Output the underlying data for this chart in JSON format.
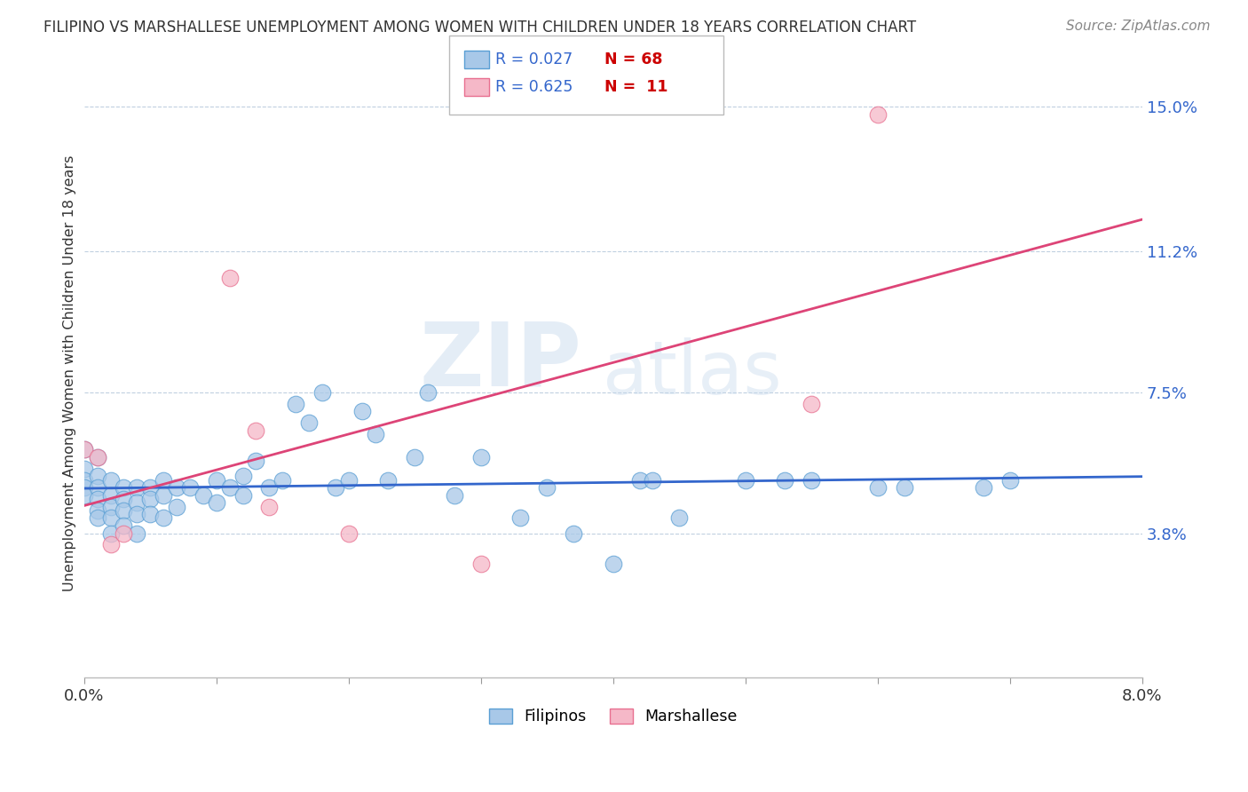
{
  "title": "FILIPINO VS MARSHALLESE UNEMPLOYMENT AMONG WOMEN WITH CHILDREN UNDER 18 YEARS CORRELATION CHART",
  "source": "Source: ZipAtlas.com",
  "ylabel": "Unemployment Among Women with Children Under 18 years",
  "xlim": [
    0.0,
    0.08
  ],
  "ylim": [
    0.0,
    0.16
  ],
  "ytick_positions": [
    0.038,
    0.075,
    0.112,
    0.15
  ],
  "ytick_labels": [
    "3.8%",
    "7.5%",
    "11.2%",
    "15.0%"
  ],
  "filipino_R": 0.027,
  "filipino_N": 68,
  "marshallese_R": 0.625,
  "marshallese_N": 11,
  "blue_scatter_color": "#a8c8e8",
  "blue_edge_color": "#5a9fd4",
  "pink_scatter_color": "#f5b8c8",
  "pink_edge_color": "#e87090",
  "blue_line_color": "#3366cc",
  "pink_line_color": "#dd4477",
  "legend_R_color": "#3366cc",
  "legend_N_color": "#cc0000",
  "filipino_x": [
    0.0,
    0.0,
    0.0,
    0.0,
    0.0,
    0.001,
    0.001,
    0.001,
    0.001,
    0.001,
    0.001,
    0.002,
    0.002,
    0.002,
    0.002,
    0.002,
    0.003,
    0.003,
    0.003,
    0.003,
    0.004,
    0.004,
    0.004,
    0.004,
    0.005,
    0.005,
    0.005,
    0.006,
    0.006,
    0.006,
    0.007,
    0.007,
    0.008,
    0.009,
    0.01,
    0.01,
    0.011,
    0.012,
    0.012,
    0.013,
    0.014,
    0.015,
    0.016,
    0.017,
    0.018,
    0.019,
    0.02,
    0.021,
    0.022,
    0.023,
    0.025,
    0.026,
    0.028,
    0.03,
    0.033,
    0.035,
    0.037,
    0.04,
    0.042,
    0.043,
    0.045,
    0.05,
    0.053,
    0.055,
    0.06,
    0.062,
    0.068,
    0.07
  ],
  "filipino_y": [
    0.06,
    0.055,
    0.052,
    0.05,
    0.048,
    0.058,
    0.053,
    0.05,
    0.047,
    0.044,
    0.042,
    0.052,
    0.048,
    0.045,
    0.042,
    0.038,
    0.05,
    0.047,
    0.044,
    0.04,
    0.05,
    0.046,
    0.043,
    0.038,
    0.05,
    0.047,
    0.043,
    0.052,
    0.048,
    0.042,
    0.05,
    0.045,
    0.05,
    0.048,
    0.052,
    0.046,
    0.05,
    0.053,
    0.048,
    0.057,
    0.05,
    0.052,
    0.072,
    0.067,
    0.075,
    0.05,
    0.052,
    0.07,
    0.064,
    0.052,
    0.058,
    0.075,
    0.048,
    0.058,
    0.042,
    0.05,
    0.038,
    0.03,
    0.052,
    0.052,
    0.042,
    0.052,
    0.052,
    0.052,
    0.05,
    0.05,
    0.05,
    0.052
  ],
  "marshallese_x": [
    0.0,
    0.001,
    0.002,
    0.003,
    0.011,
    0.013,
    0.014,
    0.02,
    0.03,
    0.055,
    0.06
  ],
  "marshallese_y": [
    0.06,
    0.058,
    0.035,
    0.038,
    0.105,
    0.065,
    0.045,
    0.038,
    0.03,
    0.072,
    0.148
  ],
  "fil_line_x0": 0.0,
  "fil_line_x1": 0.08,
  "fil_line_y0": 0.05,
  "fil_line_y1": 0.052,
  "mar_line_x0": 0.0,
  "mar_line_x1": 0.08,
  "mar_line_y0": 0.03,
  "mar_line_y1": 0.112
}
